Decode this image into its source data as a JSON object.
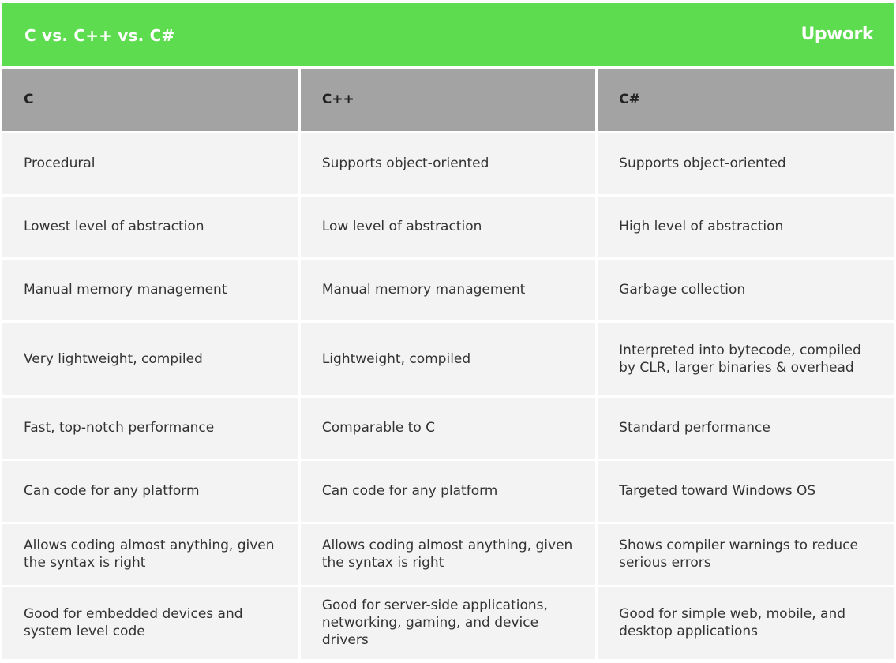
{
  "banner": {
    "title": "C vs. C++ vs. C#",
    "logo_text": "Upwork",
    "color": "#5ddc50"
  },
  "table": {
    "header_color": "#a3a3a3",
    "cell_color": "#f3f3f3",
    "columns": [
      "C",
      "C++",
      "C#"
    ],
    "rows": [
      [
        "Procedural",
        "Supports object-oriented",
        "Supports object-oriented"
      ],
      [
        "Lowest level of abstraction",
        "Low level of abstraction",
        "High level of abstraction"
      ],
      [
        "Manual memory management",
        "Manual memory management",
        "Garbage collection"
      ],
      [
        "Very lightweight, compiled",
        "Lightweight, compiled",
        "Interpreted into bytecode, compiled by CLR, larger binaries & overhead"
      ],
      [
        "Fast, top-notch performance",
        "Comparable to C",
        "Standard performance"
      ],
      [
        "Can code for any platform",
        "Can code for any platform",
        "Targeted toward Windows OS"
      ],
      [
        "Allows coding almost anything, given the syntax is right",
        "Allows coding almost anything, given the syntax is right",
        "Shows compiler warnings to reduce serious errors"
      ],
      [
        "Good for embedded devices and system level code",
        "Good for server-side applications, networking, gaming, and device drivers",
        "Good for simple web, mobile, and desktop applications"
      ]
    ]
  }
}
